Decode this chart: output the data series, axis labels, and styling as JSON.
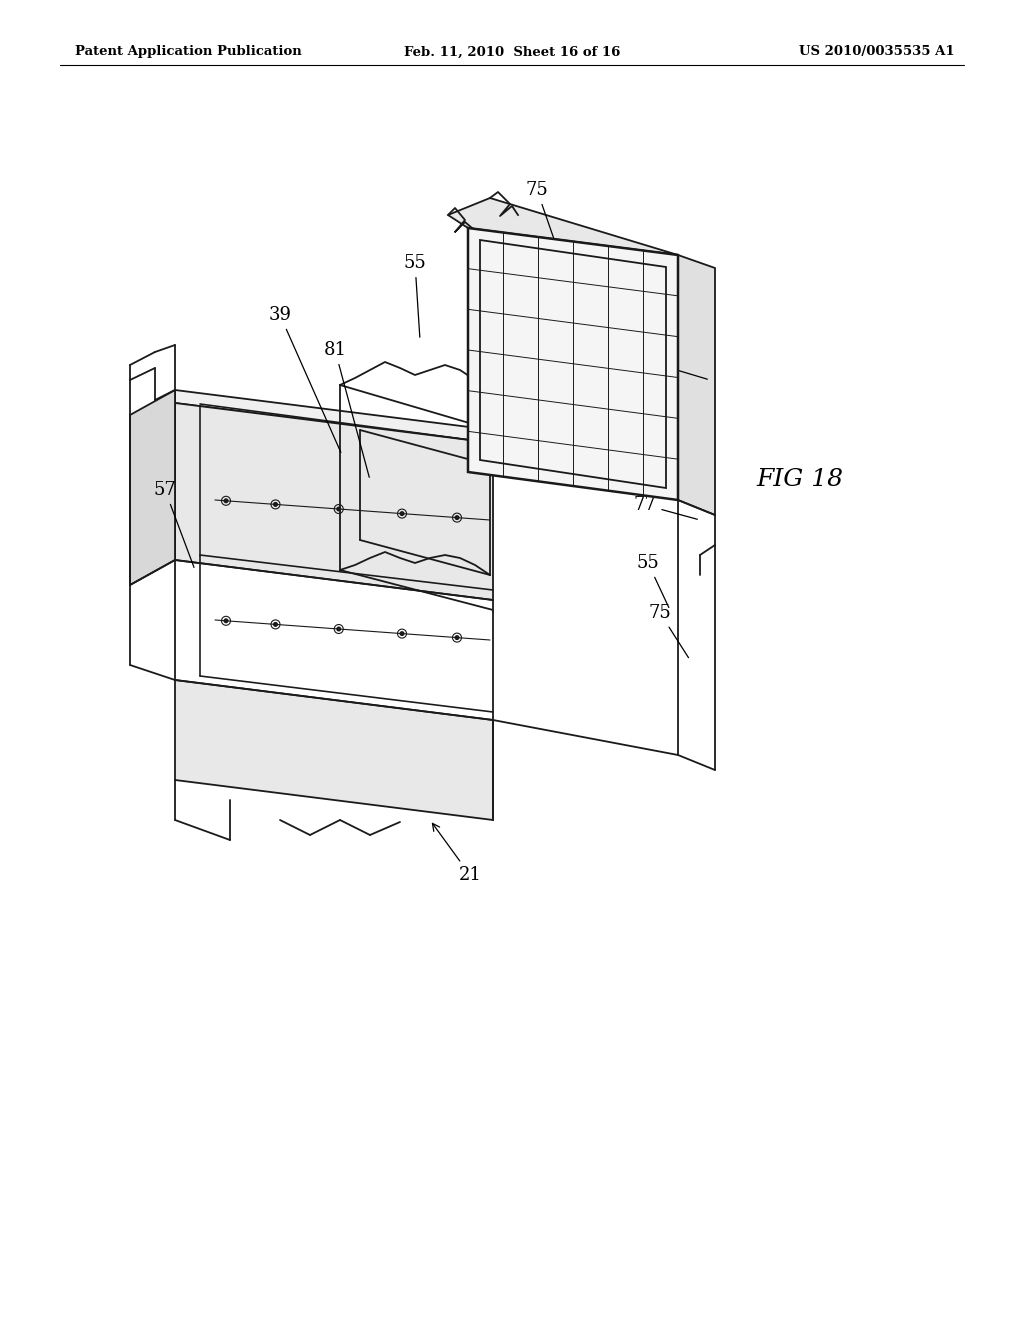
{
  "background_color": "#ffffff",
  "header_left": "Patent Application Publication",
  "header_center": "Feb. 11, 2010  Sheet 16 of 16",
  "header_right": "US 2010/0035535 A1",
  "fig_label": "FIG 18",
  "line_color": "#1a1a1a",
  "line_width": 1.3
}
